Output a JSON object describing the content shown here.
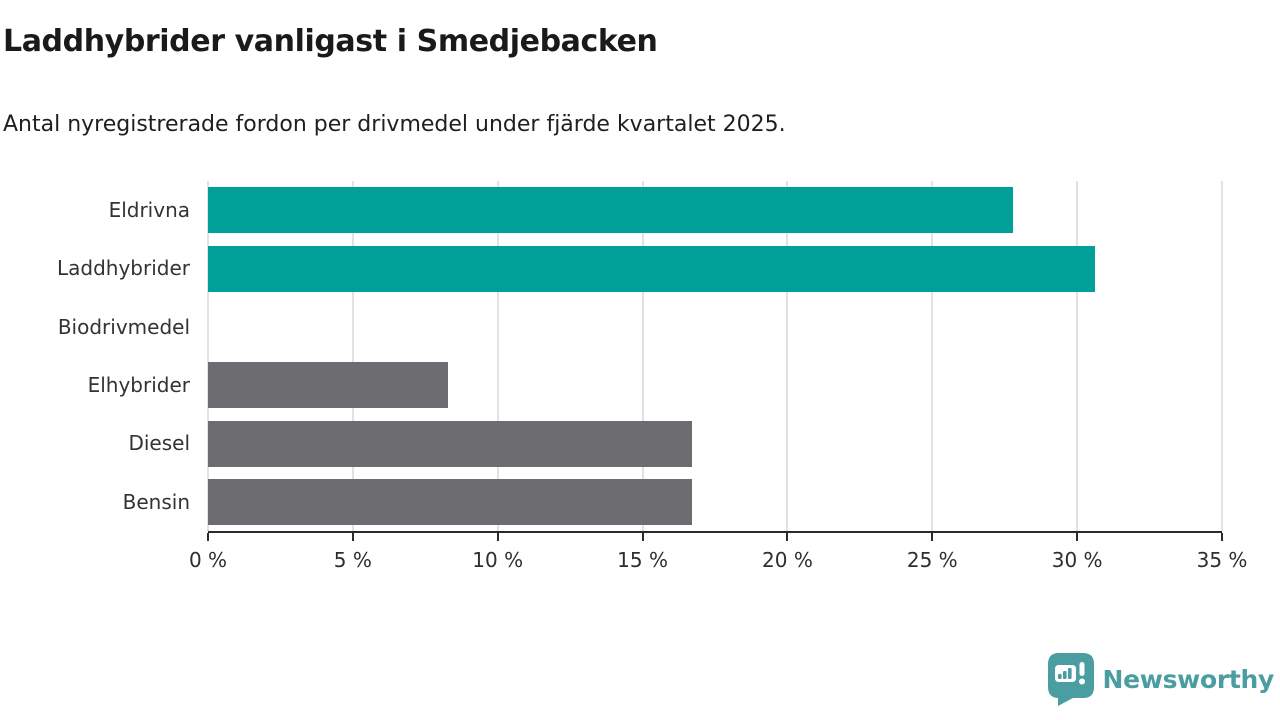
{
  "header": {
    "title": "Laddhybrider vanligast i Smedjebacken",
    "subtitle": "Antal nyregistrerade fordon per drivmedel under fjärde kvartalet 2025."
  },
  "chart_data": {
    "type": "bar",
    "orientation": "horizontal",
    "title": "Laddhybrider vanligast i Smedjebacken",
    "subtitle": "Antal nyregistrerade fordon per drivmedel under fjärde kvartalet 2025.",
    "categories": [
      "Eldrivna",
      "Laddhybrider",
      "Biodrivmedel",
      "Elhybrider",
      "Diesel",
      "Bensin"
    ],
    "values": [
      27.8,
      30.6,
      0,
      8.3,
      16.7,
      16.7
    ],
    "unit": "%",
    "bar_colors": [
      "#00a099",
      "#00a099",
      "#6c6c71",
      "#6c6c71",
      "#6c6c71",
      "#6c6c71"
    ],
    "xlim": [
      0,
      35
    ],
    "x_ticks": [
      0,
      5,
      10,
      15,
      20,
      25,
      30,
      35
    ],
    "x_tick_labels": [
      "0 %",
      "5 %",
      "10 %",
      "15 %",
      "20 %",
      "25 %",
      "30 %",
      "35 %"
    ],
    "grid": "vertical",
    "legend": "none",
    "colors": {
      "highlight": "#00a099",
      "neutral": "#6c6c71",
      "gridline": "#e2e2e2",
      "axis": "#2b2b2b"
    }
  },
  "branding": {
    "logo_text": "Newsworthy",
    "logo_color": "#4a9da1",
    "logo_icon": "newsworthy-bar-chart-speech-bubble-icon"
  }
}
